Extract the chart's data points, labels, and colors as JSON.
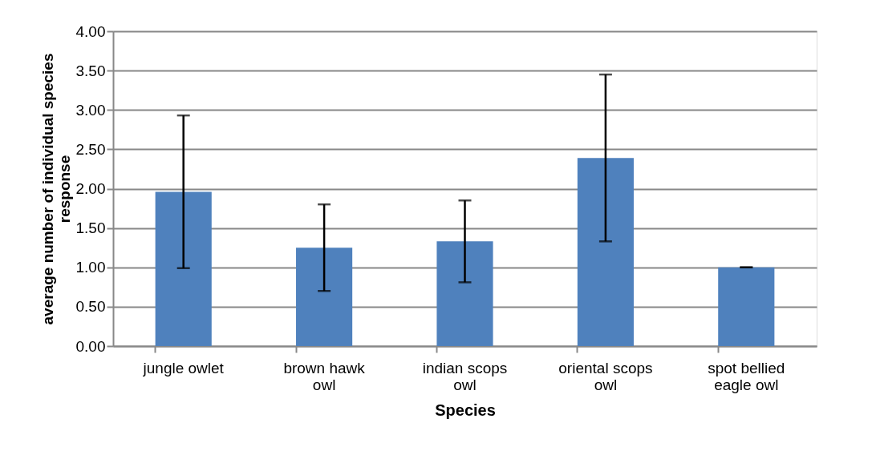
{
  "chart_data": {
    "type": "bar",
    "xlabel": "Species",
    "ylabel": "average number of individual species response",
    "categories": [
      "jungle owlet",
      "brown hawk owl",
      "indian scops owl",
      "oriental scops owl",
      "spot bellied eagle owl"
    ],
    "values": [
      1.96,
      1.25,
      1.33,
      2.39,
      1.0
    ],
    "errors": [
      0.97,
      0.55,
      0.52,
      1.06,
      0
    ],
    "color": "#4f81bd",
    "ylim": [
      0,
      4
    ],
    "yticks": [
      {
        "value": 0,
        "label": "0.00"
      },
      {
        "value": 0.5,
        "label": "0.50"
      },
      {
        "value": 1,
        "label": "1.00"
      },
      {
        "value": 1.5,
        "label": "1.50"
      },
      {
        "value": 2,
        "label": "2.00"
      },
      {
        "value": 2.5,
        "label": "2.50"
      },
      {
        "value": 3,
        "label": "3.00"
      },
      {
        "value": 3.5,
        "label": "3.50"
      },
      {
        "value": 4,
        "label": "4.00"
      }
    ],
    "grid": "y"
  }
}
